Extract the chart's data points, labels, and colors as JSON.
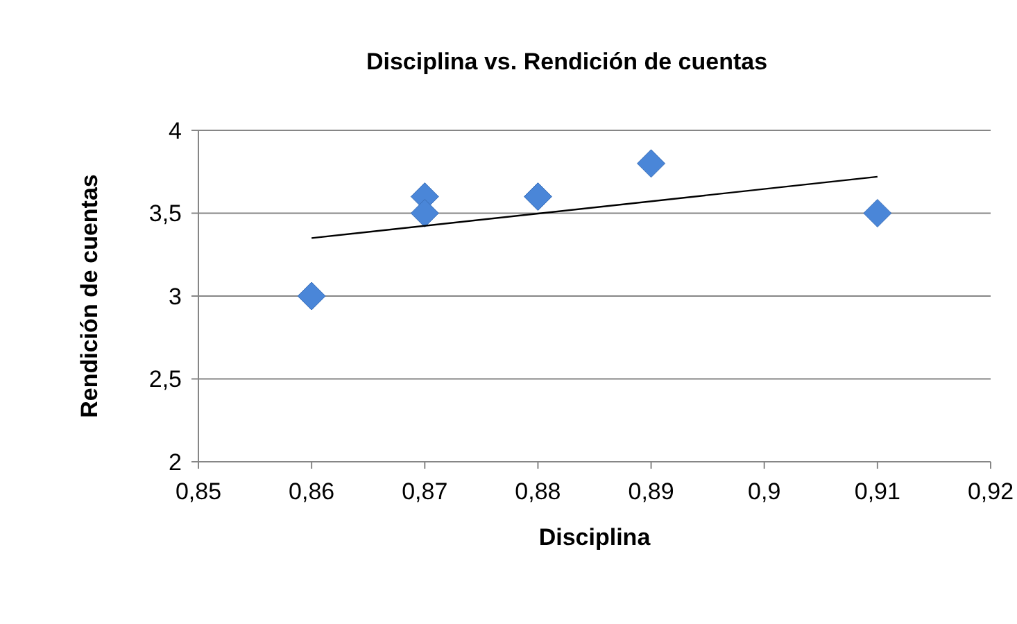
{
  "chart_data": {
    "type": "scatter",
    "title": "Disciplina vs. Rendición de cuentas",
    "xlabel": "Disciplina",
    "ylabel": "Rendición de cuentas",
    "xlim": [
      0.85,
      0.92
    ],
    "xticks": [
      {
        "value": 0.85,
        "label": "0,85"
      },
      {
        "value": 0.86,
        "label": "0,86"
      },
      {
        "value": 0.87,
        "label": "0,87"
      },
      {
        "value": 0.88,
        "label": "0,88"
      },
      {
        "value": 0.89,
        "label": "0,89"
      },
      {
        "value": 0.9,
        "label": "0,9"
      },
      {
        "value": 0.91,
        "label": "0,91"
      },
      {
        "value": 0.92,
        "label": "0,92"
      }
    ],
    "ylim": [
      2,
      4
    ],
    "yticks": [
      2,
      {
        "value": 2.5,
        "label": "2,5"
      },
      3,
      {
        "value": 3.5,
        "label": "3,5"
      },
      4
    ],
    "grid": "y",
    "series": [
      {
        "color": "#4a86d8",
        "marker": "diamond",
        "x": [
          0.86,
          0.87,
          0.87,
          0.88,
          0.89,
          0.91
        ],
        "values": [
          3,
          3.6,
          3.5,
          3.6,
          3.8,
          3.5
        ]
      },
      {
        "type": "line",
        "color": "#000000",
        "marker": "none",
        "line_style": "solid",
        "x": [
          0.86,
          0.91
        ],
        "values": [
          3.35,
          3.72
        ]
      }
    ]
  }
}
